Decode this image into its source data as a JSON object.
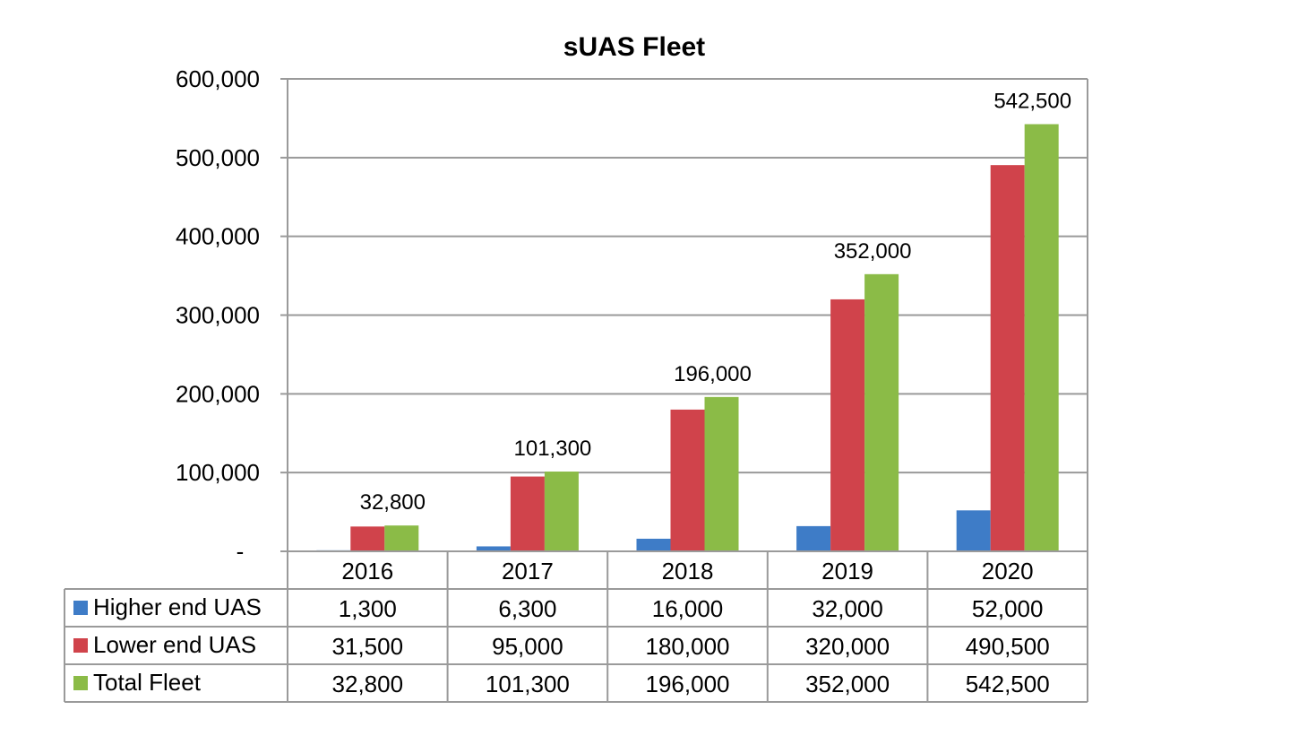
{
  "chart_data": {
    "type": "bar",
    "title": "sUAS Fleet",
    "categories": [
      "2016",
      "2017",
      "2018",
      "2019",
      "2020"
    ],
    "series": [
      {
        "name": "Higher end UAS",
        "values": [
          1300,
          6300,
          16000,
          32000,
          52000
        ],
        "display": [
          "1,300",
          "6,300",
          "16,000",
          "32,000",
          "52,000"
        ],
        "color": "#3e7cc7"
      },
      {
        "name": "Lower end UAS",
        "values": [
          31500,
          95000,
          180000,
          320000,
          490500
        ],
        "display": [
          "31,500",
          "95,000",
          "180,000",
          "320,000",
          "490,500"
        ],
        "color": "#d0434b"
      },
      {
        "name": "Total Fleet",
        "values": [
          32800,
          101300,
          196000,
          352000,
          542500
        ],
        "display": [
          "32,800",
          "101,300",
          "196,000",
          "352,000",
          "542,500"
        ],
        "color": "#8bbb47"
      }
    ],
    "data_labels_series": "Total Fleet",
    "ylim": [
      0,
      600000
    ],
    "yticks": [
      0,
      100000,
      200000,
      300000,
      400000,
      500000,
      600000
    ],
    "ytick_labels": [
      "-",
      "100,000",
      "200,000",
      "300,000",
      "400,000",
      "500,000",
      "600,000"
    ],
    "grid": true,
    "legend": "data-table"
  }
}
